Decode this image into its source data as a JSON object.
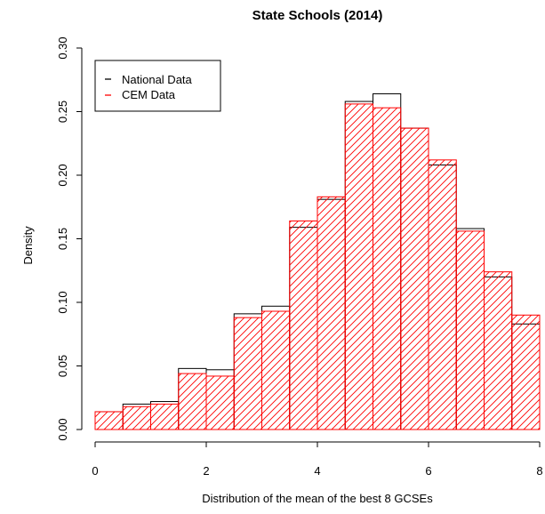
{
  "chart_data": {
    "type": "bar",
    "title": "State Schools (2014)",
    "xlabel": "Distribution of the mean of the best 8 GCSEs",
    "ylabel": "Density",
    "xlim": [
      0,
      8
    ],
    "ylim": [
      0,
      0.3
    ],
    "x_ticks": [
      "0",
      "2",
      "4",
      "6",
      "8"
    ],
    "y_ticks": [
      "0.00",
      "0.05",
      "0.10",
      "0.15",
      "0.20",
      "0.25",
      "0.30"
    ],
    "bin_edges": [
      0,
      0.5,
      1,
      1.5,
      2,
      2.5,
      3,
      3.5,
      4,
      4.5,
      5,
      5.5,
      6,
      6.5,
      7,
      7.5,
      8
    ],
    "legend_position": "top-left",
    "grid": false,
    "series": [
      {
        "name": "National Data",
        "color": "#000000",
        "style": "outline",
        "values": [
          0.014,
          0.02,
          0.022,
          0.048,
          0.047,
          0.091,
          0.097,
          0.159,
          0.181,
          0.258,
          0.264,
          0.237,
          0.208,
          0.158,
          0.12,
          0.083
        ]
      },
      {
        "name": "CEM Data",
        "color": "#ff0000",
        "style": "hatched",
        "values": [
          0.014,
          0.018,
          0.02,
          0.044,
          0.042,
          0.088,
          0.093,
          0.164,
          0.183,
          0.256,
          0.253,
          0.237,
          0.212,
          0.156,
          0.124,
          0.09
        ]
      }
    ]
  }
}
